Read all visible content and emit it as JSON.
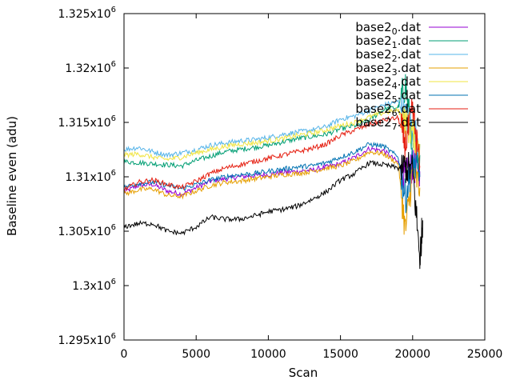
{
  "chart_data": {
    "type": "line",
    "xlabel": "Scan",
    "ylabel": "Baseline even (adu)",
    "xlim": [
      0,
      25000
    ],
    "ylim": [
      1295000,
      1325000
    ],
    "x_ticks": [
      {
        "value": 0,
        "label": "0"
      },
      {
        "value": 5000,
        "label": "5000"
      },
      {
        "value": 10000,
        "label": "10000"
      },
      {
        "value": 15000,
        "label": "15000"
      },
      {
        "value": 20000,
        "label": "20000"
      },
      {
        "value": 25000,
        "label": "25000"
      }
    ],
    "y_ticks": [
      {
        "value": 1295000,
        "mantissa": "1.295x10",
        "exp": "6"
      },
      {
        "value": 1300000,
        "mantissa": "1.3x10",
        "exp": "6"
      },
      {
        "value": 1305000,
        "mantissa": "1.305x10",
        "exp": "6"
      },
      {
        "value": 1310000,
        "mantissa": "1.31x10",
        "exp": "6"
      },
      {
        "value": 1315000,
        "mantissa": "1.315x10",
        "exp": "6"
      },
      {
        "value": 1320000,
        "mantissa": "1.32x10",
        "exp": "6"
      },
      {
        "value": 1325000,
        "mantissa": "1.325x10",
        "exp": "6"
      }
    ],
    "grid": false,
    "legend_position": "top-right",
    "series": [
      {
        "name": "base2_0.dat",
        "name_base": "base2",
        "name_sub": "0",
        "name_suffix": ".dat",
        "color": "#9400d3",
        "x": [
          0,
          1000,
          2000,
          3000,
          4000,
          5000,
          6000,
          7000,
          8000,
          9000,
          10000,
          11000,
          12000,
          13000,
          14000,
          15000,
          16000,
          17000,
          18000,
          19000,
          19500,
          20000,
          20500
        ],
        "y": [
          1308600,
          1309200,
          1309300,
          1308700,
          1308400,
          1309000,
          1309600,
          1309800,
          1310000,
          1310100,
          1310200,
          1310400,
          1310500,
          1310600,
          1310900,
          1311200,
          1311800,
          1312600,
          1312400,
          1311300,
          1310000,
          1311000,
          1310500
        ]
      },
      {
        "name": "base2_1.dat",
        "name_base": "base2",
        "name_sub": "1",
        "name_suffix": ".dat",
        "color": "#009e73",
        "x": [
          0,
          1000,
          2000,
          3000,
          4000,
          5000,
          6000,
          7000,
          8000,
          9000,
          10000,
          11000,
          12000,
          13000,
          14000,
          15000,
          16000,
          17000,
          18000,
          19000,
          19500,
          20000,
          20500
        ],
        "y": [
          1311400,
          1311300,
          1311200,
          1311100,
          1311000,
          1311500,
          1311900,
          1312300,
          1312500,
          1312700,
          1312900,
          1313200,
          1313500,
          1313700,
          1313900,
          1314400,
          1314700,
          1315200,
          1316200,
          1316400,
          1318500,
          1313000,
          1312000
        ]
      },
      {
        "name": "base2_2.dat",
        "name_base": "base2",
        "name_sub": "2",
        "name_suffix": ".dat",
        "color": "#56b4e9",
        "x": [
          0,
          1000,
          2000,
          3000,
          4000,
          5000,
          6000,
          7000,
          8000,
          9000,
          10000,
          11000,
          12000,
          13000,
          14000,
          15000,
          16000,
          17000,
          18000,
          19000,
          19500,
          20000,
          20500
        ],
        "y": [
          1312500,
          1312700,
          1312300,
          1312000,
          1312200,
          1312500,
          1312900,
          1313100,
          1313300,
          1313400,
          1313600,
          1313900,
          1314100,
          1314300,
          1314600,
          1315300,
          1315600,
          1316100,
          1316600,
          1316900,
          1315500,
          1314500,
          1313000
        ]
      },
      {
        "name": "base2_3.dat",
        "name_base": "base2",
        "name_sub": "3",
        "name_suffix": ".dat",
        "color": "#e69f00",
        "x": [
          0,
          1000,
          2000,
          3000,
          4000,
          5000,
          6000,
          7000,
          8000,
          9000,
          10000,
          11000,
          12000,
          13000,
          14000,
          15000,
          16000,
          17000,
          18000,
          19000,
          19500,
          20000,
          20500
        ],
        "y": [
          1308400,
          1308800,
          1308900,
          1308300,
          1308200,
          1308700,
          1309200,
          1309500,
          1309600,
          1309800,
          1310000,
          1310200,
          1310300,
          1310500,
          1310800,
          1311000,
          1311500,
          1312300,
          1312100,
          1311200,
          1305000,
          1310500,
          1309000
        ]
      },
      {
        "name": "base2_4.dat",
        "name_base": "base2",
        "name_sub": "4",
        "name_suffix": ".dat",
        "color": "#f0e442",
        "x": [
          0,
          1000,
          2000,
          3000,
          4000,
          5000,
          6000,
          7000,
          8000,
          9000,
          10000,
          11000,
          12000,
          13000,
          14000,
          15000,
          16000,
          17000,
          18000,
          19000,
          19500,
          20000,
          20500
        ],
        "y": [
          1312000,
          1312100,
          1311800,
          1311600,
          1311800,
          1312200,
          1312500,
          1312800,
          1313000,
          1313100,
          1313300,
          1313500,
          1313800,
          1314000,
          1314300,
          1314700,
          1315000,
          1315500,
          1315900,
          1316100,
          1315000,
          1314000,
          1313000
        ]
      },
      {
        "name": "base2_5.dat",
        "name_base": "base2",
        "name_sub": "5",
        "name_suffix": ".dat",
        "color": "#0072b2",
        "x": [
          0,
          1000,
          2000,
          3000,
          4000,
          5000,
          6000,
          7000,
          8000,
          9000,
          10000,
          11000,
          12000,
          13000,
          14000,
          15000,
          16000,
          17000,
          18000,
          19000,
          19500,
          20000,
          20500
        ],
        "y": [
          1309000,
          1309400,
          1309500,
          1309200,
          1308900,
          1309300,
          1309700,
          1310000,
          1310200,
          1310300,
          1310500,
          1310700,
          1310900,
          1311000,
          1311300,
          1311800,
          1312300,
          1313000,
          1312800,
          1311800,
          1308000,
          1311500,
          1310000
        ]
      },
      {
        "name": "base2_6.dat",
        "name_base": "base2",
        "name_sub": "6",
        "name_suffix": ".dat",
        "color": "#e51e10",
        "x": [
          0,
          1000,
          2000,
          3000,
          4000,
          5000,
          6000,
          7000,
          8000,
          9000,
          10000,
          11000,
          12000,
          13000,
          14000,
          15000,
          16000,
          17000,
          18000,
          19000,
          19500,
          20000,
          20500
        ],
        "y": [
          1308800,
          1309500,
          1309700,
          1309300,
          1309000,
          1309600,
          1310300,
          1310800,
          1311100,
          1311400,
          1311700,
          1312000,
          1312300,
          1312600,
          1313000,
          1313800,
          1314300,
          1314800,
          1315200,
          1315400,
          1313000,
          1316000,
          1311000
        ]
      },
      {
        "name": "base2_7.dat",
        "name_base": "base2",
        "name_sub": "7",
        "name_suffix": ".dat",
        "color": "#000000",
        "x": [
          0,
          1000,
          2000,
          3000,
          4000,
          5000,
          6000,
          7000,
          8000,
          9000,
          10000,
          11000,
          12000,
          13000,
          14000,
          15000,
          16000,
          17000,
          18000,
          19000,
          19500,
          20000,
          20500,
          20700
        ],
        "y": [
          1305400,
          1305700,
          1305700,
          1305000,
          1304800,
          1305400,
          1306300,
          1306100,
          1306100,
          1306400,
          1306800,
          1307000,
          1307300,
          1307900,
          1308600,
          1309700,
          1310300,
          1311300,
          1311100,
          1310800,
          1310900,
          1310600,
          1302500,
          1306000
        ]
      }
    ]
  }
}
